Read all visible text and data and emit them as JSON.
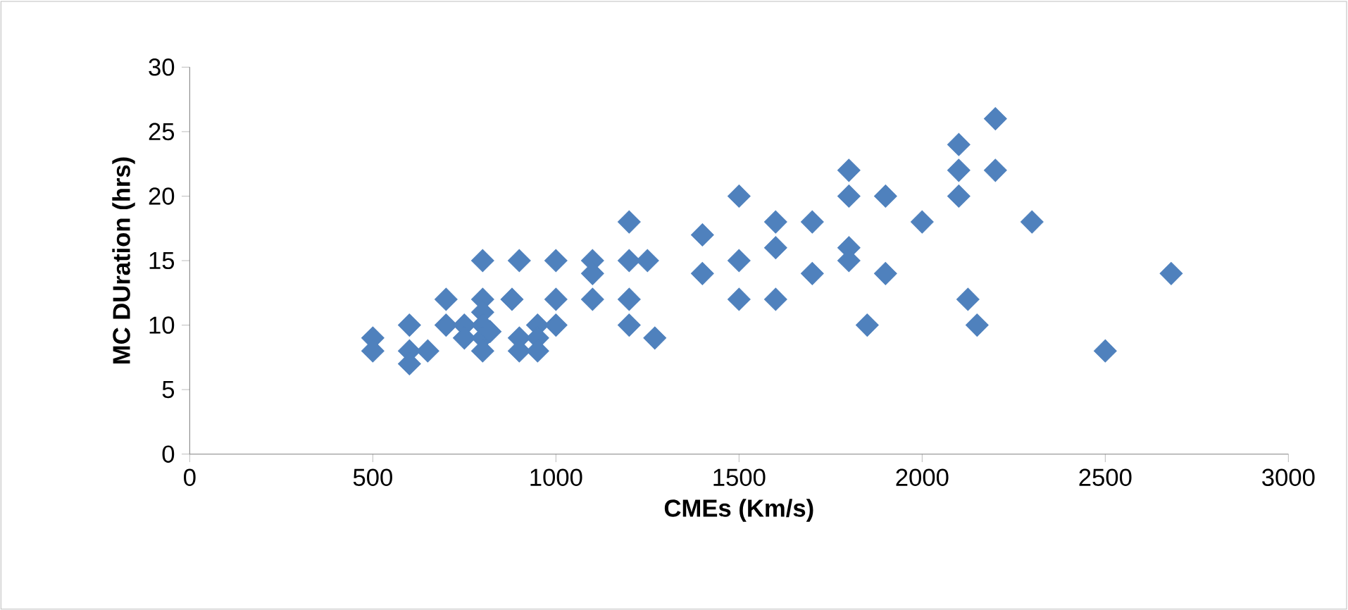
{
  "chart_data": {
    "type": "scatter",
    "xlabel": "CMEs (Km/s)",
    "ylabel": "MC DUration (hrs)",
    "xlim": [
      0,
      3000
    ],
    "xticks": [
      0,
      500,
      1000,
      1500,
      2000,
      2500,
      3000
    ],
    "ylim": [
      0,
      30
    ],
    "yticks": [
      0,
      5,
      10,
      15,
      20,
      25,
      30
    ],
    "grid": false,
    "marker": "diamond",
    "series": [
      {
        "color": "#4f81bd",
        "x": [
          500,
          500,
          600,
          600,
          600,
          650,
          700,
          700,
          750,
          750,
          800,
          800,
          800,
          800,
          800,
          800,
          820,
          880,
          900,
          900,
          900,
          950,
          950,
          950,
          1000,
          1000,
          1000,
          1100,
          1100,
          1100,
          1200,
          1200,
          1200,
          1200,
          1250,
          1270,
          1400,
          1400,
          1500,
          1500,
          1500,
          1600,
          1600,
          1600,
          1700,
          1700,
          1800,
          1800,
          1800,
          1800,
          1850,
          1900,
          1900,
          2000,
          2100,
          2100,
          2100,
          2125,
          2150,
          2200,
          2200,
          2300,
          2500,
          2680
        ],
        "values": [
          9,
          8,
          10,
          8,
          7,
          8,
          12,
          10,
          10,
          9,
          15,
          12,
          11,
          10,
          9,
          8,
          9.5,
          12,
          15,
          9,
          8,
          10,
          9,
          8,
          15,
          12,
          10,
          15,
          14,
          12,
          18,
          15,
          12,
          10,
          15,
          9,
          17,
          14,
          20,
          15,
          12,
          18,
          16,
          12,
          18,
          14,
          22,
          20,
          16,
          15,
          10,
          20,
          14,
          18,
          24,
          22,
          20,
          12,
          10,
          26,
          22,
          18,
          8,
          14
        ]
      }
    ]
  }
}
